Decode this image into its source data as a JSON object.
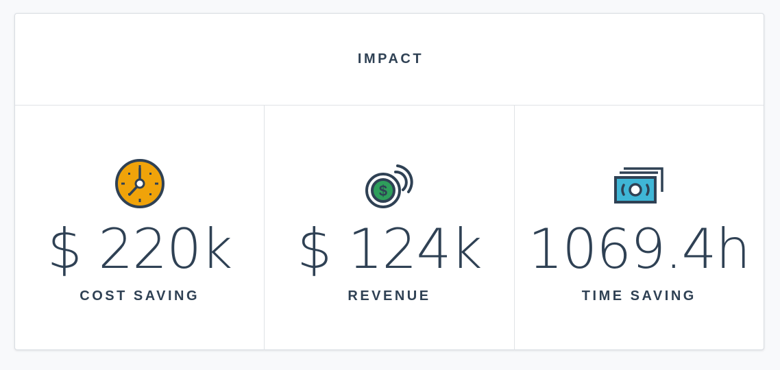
{
  "card": {
    "title": "IMPACT"
  },
  "metrics": [
    {
      "value": "$ 220k",
      "label": "COST SAVING",
      "icon": "clock-icon",
      "icon_color": "#f0a30a"
    },
    {
      "value": "$ 124k",
      "label": "REVENUE",
      "icon": "coins-icon",
      "icon_color": "#2e9e5b"
    },
    {
      "value": "1069.4h",
      "label": "TIME SAVING",
      "icon": "banknote-icon",
      "icon_color": "#3fb6d6"
    }
  ],
  "colors": {
    "text": "#2f4154",
    "border": "#dfe2e6",
    "background": "#f8f9fb",
    "card": "#ffffff"
  }
}
